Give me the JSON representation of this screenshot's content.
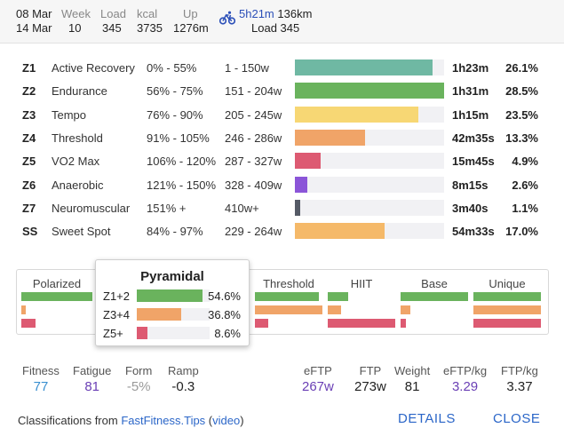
{
  "header": {
    "date_from": "08 Mar",
    "date_to": "14 Mar",
    "week_label": "Week",
    "week_value": "10",
    "load_label": "Load",
    "load_value": "345",
    "kcal_label": "kcal",
    "kcal_value": "3735",
    "up_label": "Up",
    "up_value": "1276m",
    "ride_icon": "bicycle-icon",
    "ride_time": "5h21m",
    "ride_distance": "136km",
    "ride_load": "Load 345"
  },
  "zones": [
    {
      "id": "Z1",
      "name": "Active Recovery",
      "pct": "0% - 55%",
      "watts": "1 - 150w",
      "time": "1h23m",
      "share": "26.1%",
      "fill": 0.92,
      "color": "#6fb8a3"
    },
    {
      "id": "Z2",
      "name": "Endurance",
      "pct": "56% - 75%",
      "watts": "151 - 204w",
      "time": "1h31m",
      "share": "28.5%",
      "fill": 1.0,
      "color": "#6ab35d"
    },
    {
      "id": "Z3",
      "name": "Tempo",
      "pct": "76% - 90%",
      "watts": "205 - 245w",
      "time": "1h15m",
      "share": "23.5%",
      "fill": 0.825,
      "color": "#f7d774"
    },
    {
      "id": "Z4",
      "name": "Threshold",
      "pct": "91% - 105%",
      "watts": "246 - 286w",
      "time": "42m35s",
      "share": "13.3%",
      "fill": 0.47,
      "color": "#f0a468"
    },
    {
      "id": "Z5",
      "name": "VO2 Max",
      "pct": "106% - 120%",
      "watts": "287 - 327w",
      "time": "15m45s",
      "share": "4.9%",
      "fill": 0.17,
      "color": "#dd5a72"
    },
    {
      "id": "Z6",
      "name": "Anaerobic",
      "pct": "121% - 150%",
      "watts": "328 - 409w",
      "time": "8m15s",
      "share": "2.6%",
      "fill": 0.085,
      "color": "#8b55d8"
    },
    {
      "id": "Z7",
      "name": "Neuromuscular",
      "pct": "151% +",
      "watts": "410w+",
      "time": "3m40s",
      "share": "1.1%",
      "fill": 0.035,
      "color": "#555a66"
    },
    {
      "id": "SS",
      "name": "Sweet Spot",
      "pct": "84% - 97%",
      "watts": "229 - 264w",
      "time": "54m33s",
      "share": "17.0%",
      "fill": 0.6,
      "color": "#f5b969"
    }
  ],
  "distributions": [
    {
      "title": "Polarized",
      "bars": [
        {
          "fill": 1.0,
          "color": "#6ab35d"
        },
        {
          "fill": 0.06,
          "color": "#f0a468"
        },
        {
          "fill": 0.2,
          "color": "#dd5a72"
        }
      ]
    },
    {
      "title": "Threshold",
      "bars": [
        {
          "fill": 0.95,
          "color": "#6ab35d"
        },
        {
          "fill": 1.0,
          "color": "#f0a468"
        },
        {
          "fill": 0.2,
          "color": "#dd5a72"
        }
      ]
    },
    {
      "title": "HIIT",
      "bars": [
        {
          "fill": 0.3,
          "color": "#6ab35d"
        },
        {
          "fill": 0.2,
          "color": "#f0a468"
        },
        {
          "fill": 1.0,
          "color": "#dd5a72"
        }
      ]
    },
    {
      "title": "Base",
      "bars": [
        {
          "fill": 1.0,
          "color": "#6ab35d"
        },
        {
          "fill": 0.15,
          "color": "#f0a468"
        },
        {
          "fill": 0.08,
          "color": "#dd5a72"
        }
      ]
    },
    {
      "title": "Unique",
      "bars": [
        {
          "fill": 1.0,
          "color": "#6ab35d"
        },
        {
          "fill": 1.0,
          "color": "#f0a468"
        },
        {
          "fill": 1.0,
          "color": "#dd5a72"
        }
      ]
    }
  ],
  "popup": {
    "title": "Pyramidal",
    "rows": [
      {
        "label": "Z1+2",
        "value": "54.6%",
        "fill": 0.546,
        "color": "#6ab35d"
      },
      {
        "label": "Z3+4",
        "value": "36.8%",
        "fill": 0.368,
        "color": "#f0a468"
      },
      {
        "label": "Z5+",
        "value": "8.6%",
        "fill": 0.086,
        "color": "#dd5a72"
      }
    ]
  },
  "metrics_left": [
    {
      "label": "Fitness",
      "value": "77",
      "color": "#3a8fd0"
    },
    {
      "label": "Fatigue",
      "value": "81",
      "color": "#6a3fb5"
    },
    {
      "label": "Form",
      "value": "-5%",
      "color": "#9a9a9a"
    },
    {
      "label": "Ramp",
      "value": "-0.3",
      "color": "#222222"
    }
  ],
  "metrics_right": [
    {
      "label": "eFTP",
      "value": "267w",
      "color": "#6a3fb5"
    },
    {
      "label": "FTP",
      "value": "273w",
      "color": "#222222"
    },
    {
      "label": "Weight",
      "value": "81",
      "color": "#222222"
    },
    {
      "label": "eFTP/kg",
      "value": "3.29",
      "color": "#6a3fb5"
    },
    {
      "label": "FTP/kg",
      "value": "3.37",
      "color": "#222222"
    }
  ],
  "footer": {
    "prefix": "Classifications from ",
    "link1": "FastFitness.Tips",
    "open_paren": " (",
    "link2": "video",
    "close_paren": ")",
    "details_button": "DETAILS",
    "close_button": "CLOSE"
  }
}
